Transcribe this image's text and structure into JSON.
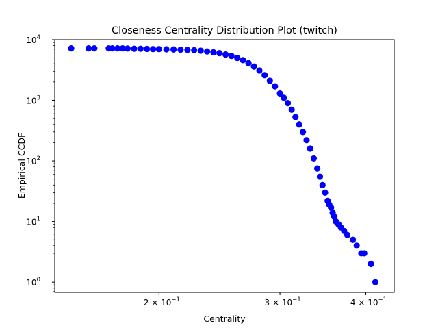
{
  "chart_data": {
    "type": "scatter",
    "title": "Closeness Centrality Distribution Plot (twitch)",
    "xlabel": "Centrality",
    "ylabel": "Empirical CCDF",
    "xscale": "log",
    "yscale": "log",
    "xlim": [
      0.141,
      0.44
    ],
    "ylim": [
      0.68,
      10000
    ],
    "xticks": [
      {
        "value": 0.2,
        "label": "2 × 10",
        "exp": "−1"
      },
      {
        "value": 0.3,
        "label": "3 × 10",
        "exp": "−1"
      },
      {
        "value": 0.4,
        "label": "4 × 10",
        "exp": "−1"
      }
    ],
    "yticks": [
      {
        "value": 1,
        "label": "10",
        "exp": "0"
      },
      {
        "value": 10,
        "label": "10",
        "exp": "1"
      },
      {
        "value": 100,
        "label": "10",
        "exp": "2"
      },
      {
        "value": 1000,
        "label": "10",
        "exp": "3"
      },
      {
        "value": 10000,
        "label": "10",
        "exp": "4"
      }
    ],
    "marker_color": "#0000ff",
    "grid": false,
    "series": [
      {
        "x": [
          0.149,
          0.158,
          0.161,
          0.169,
          0.171,
          0.174,
          0.177,
          0.18,
          0.184,
          0.188,
          0.192,
          0.196,
          0.2,
          0.205,
          0.21,
          0.215,
          0.22,
          0.225,
          0.23,
          0.235,
          0.24,
          0.245,
          0.25,
          0.255,
          0.26,
          0.265,
          0.27,
          0.275,
          0.28,
          0.285,
          0.29,
          0.295,
          0.3,
          0.304,
          0.308,
          0.312,
          0.316,
          0.32,
          0.324,
          0.328,
          0.332,
          0.336,
          0.34,
          0.343,
          0.346,
          0.349,
          0.352,
          0.354,
          0.356,
          0.358,
          0.36,
          0.362,
          0.365,
          0.368,
          0.372,
          0.376,
          0.383,
          0.388,
          0.394,
          0.398,
          0.407,
          0.413
        ],
        "y": [
          7200,
          7200,
          7200,
          7200,
          7200,
          7200,
          7200,
          7150,
          7100,
          7100,
          7050,
          7000,
          7000,
          6950,
          6900,
          6850,
          6800,
          6700,
          6600,
          6400,
          6200,
          6000,
          5700,
          5400,
          5000,
          4600,
          4100,
          3600,
          3100,
          2600,
          2100,
          1700,
          1300,
          1100,
          900,
          700,
          530,
          400,
          300,
          220,
          160,
          110,
          75,
          55,
          40,
          30,
          22,
          19,
          17,
          14,
          12,
          10,
          9,
          8,
          7,
          6,
          5,
          4,
          3,
          3,
          2,
          1
        ]
      }
    ]
  }
}
